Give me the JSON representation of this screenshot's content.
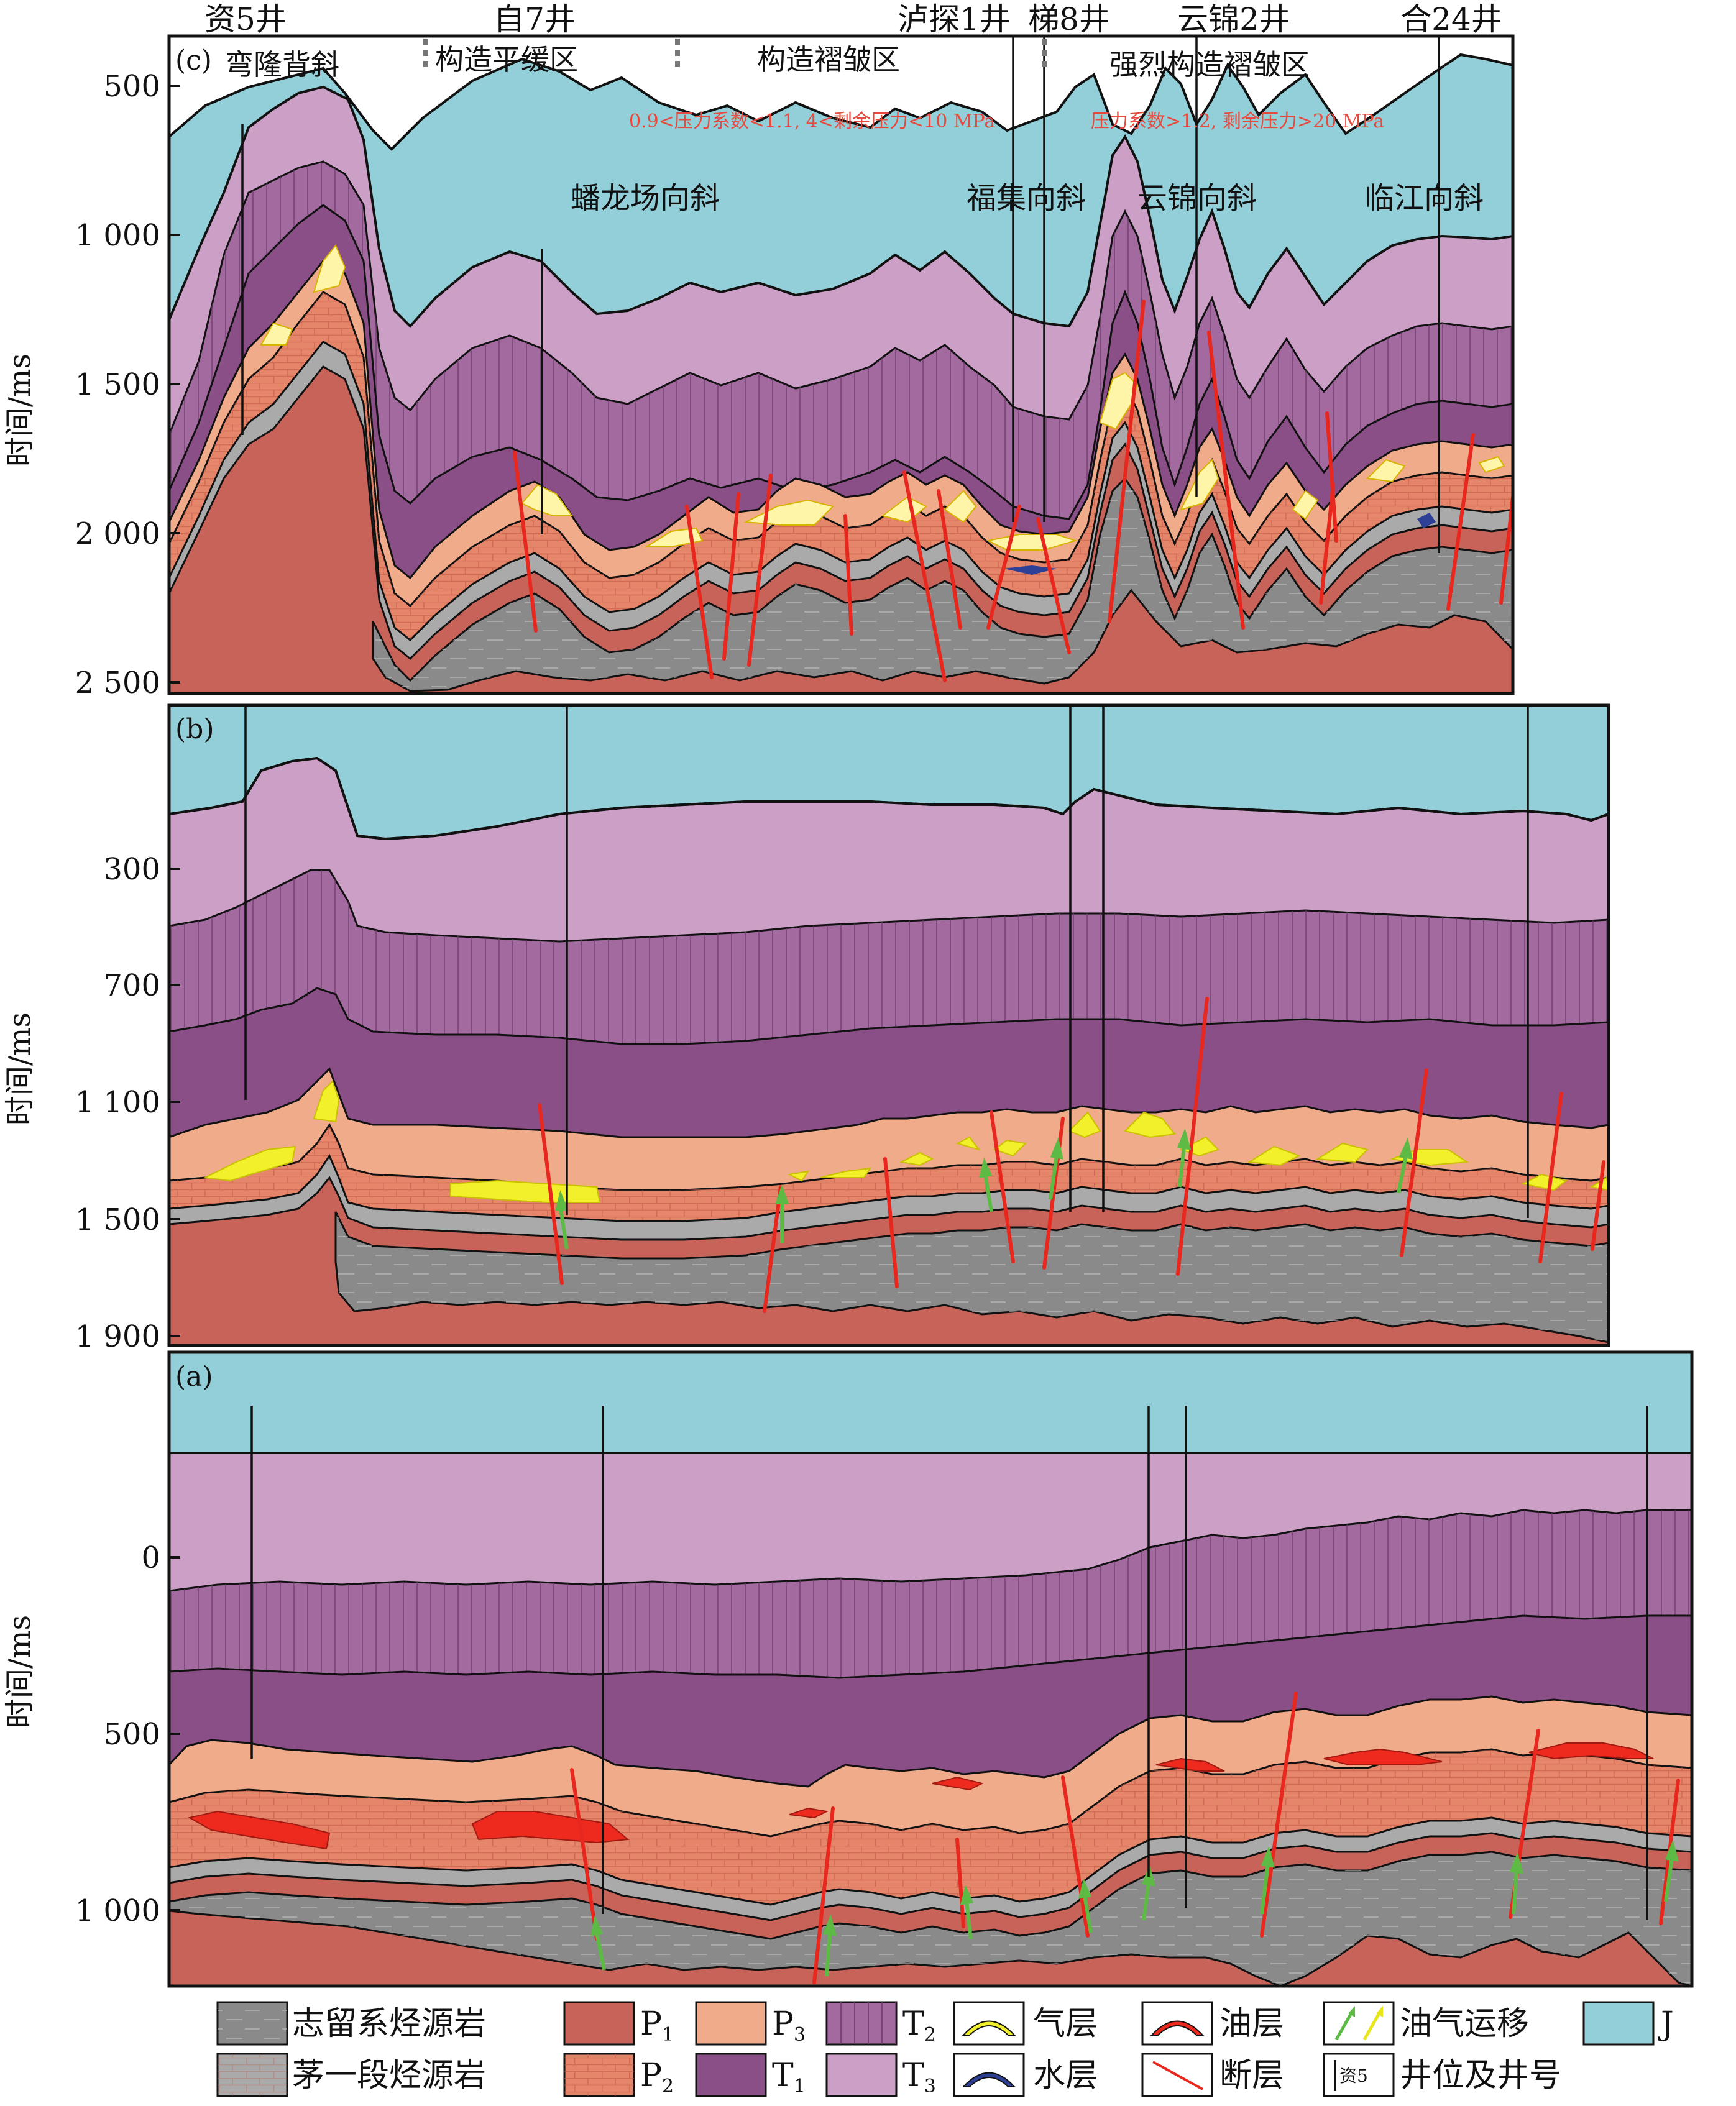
{
  "colors": {
    "J": "#93cfd8",
    "T3": "#cc9fc6",
    "T2": "#a26a9f",
    "T1": "#8a4f86",
    "P3": "#f0ab8a",
    "P2": "#e58569",
    "P1": "#c8635a",
    "maokou_source": "#aaaaaa",
    "silurian_source": "#8a8a8a",
    "gas": "#fff5a8",
    "gas_b": "#f2ef2b",
    "oil": "#ee2a1f",
    "water": "#2e3f96",
    "fault": "#e8281e",
    "migration": "#5dbb45",
    "pressure_note": "#e64a3f"
  },
  "y_axis_label": "时间/ms",
  "panel_c": {
    "label": "(c)",
    "ticks": [
      "500",
      "1 000",
      "1 500",
      "2 000",
      "2 500"
    ],
    "wells": [
      "资5井",
      "自7井",
      "泸探1井",
      "梯8井",
      "云锦2井",
      "合24井"
    ],
    "zones": [
      "弯隆背斜",
      "构造平缓区",
      "构造褶皱区",
      "强烈构造褶皱区"
    ],
    "synclines": [
      "蟠龙场向斜",
      "福集向斜",
      "云锦向斜",
      "临江向斜"
    ],
    "pressure_notes": [
      "0.9<压力系数<1.1, 4<剩余压力<10 MPa",
      "压力系数>1.2, 剩余压力>20 MPa"
    ]
  },
  "panel_b": {
    "label": "(b)",
    "ticks": [
      "300",
      "700",
      "1 100",
      "1 500",
      "1 900"
    ]
  },
  "panel_a": {
    "label": "(a)",
    "ticks": [
      "0",
      "500",
      "1 000"
    ]
  },
  "legend": {
    "silurian": "志留系烃源岩",
    "maokou": "茅一段烃源岩",
    "P1": "P",
    "P1_sub": "1",
    "P2": "P",
    "P2_sub": "2",
    "P3": "P",
    "P3_sub": "3",
    "T1": "T",
    "T1_sub": "1",
    "T2": "T",
    "T2_sub": "2",
    "T3": "T",
    "T3_sub": "3",
    "gas": "气层",
    "water": "水层",
    "oil": "油层",
    "fault": "断层",
    "migration": "油气运移",
    "well": "井位及井号",
    "well_icon_text": "资5",
    "J": "J"
  }
}
